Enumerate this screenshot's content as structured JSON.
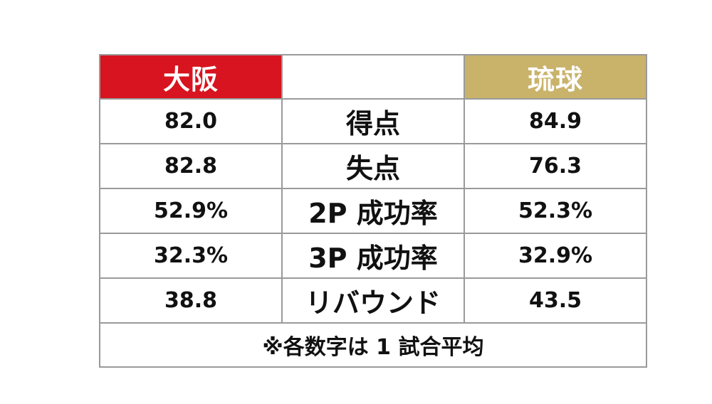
{
  "header": {
    "left_team": "大阪",
    "middle": "",
    "right_team": "琉球"
  },
  "colors": {
    "osaka_header": "#d7141f",
    "ryukyu_header": "#c9b26a",
    "border": "#9a9a9a"
  },
  "rows": [
    {
      "left": "82.0",
      "label": "得点",
      "right": "84.9"
    },
    {
      "left": "82.8",
      "label": "失点",
      "right": "76.3"
    },
    {
      "left": "52.9%",
      "label": "2P 成功率",
      "right": "52.3%"
    },
    {
      "left": "32.3%",
      "label": "3P 成功率",
      "right": "32.9%"
    },
    {
      "left": "38.8",
      "label": "リバウンド",
      "right": "43.5"
    }
  ],
  "footnote": "※各数字は 1 試合平均"
}
